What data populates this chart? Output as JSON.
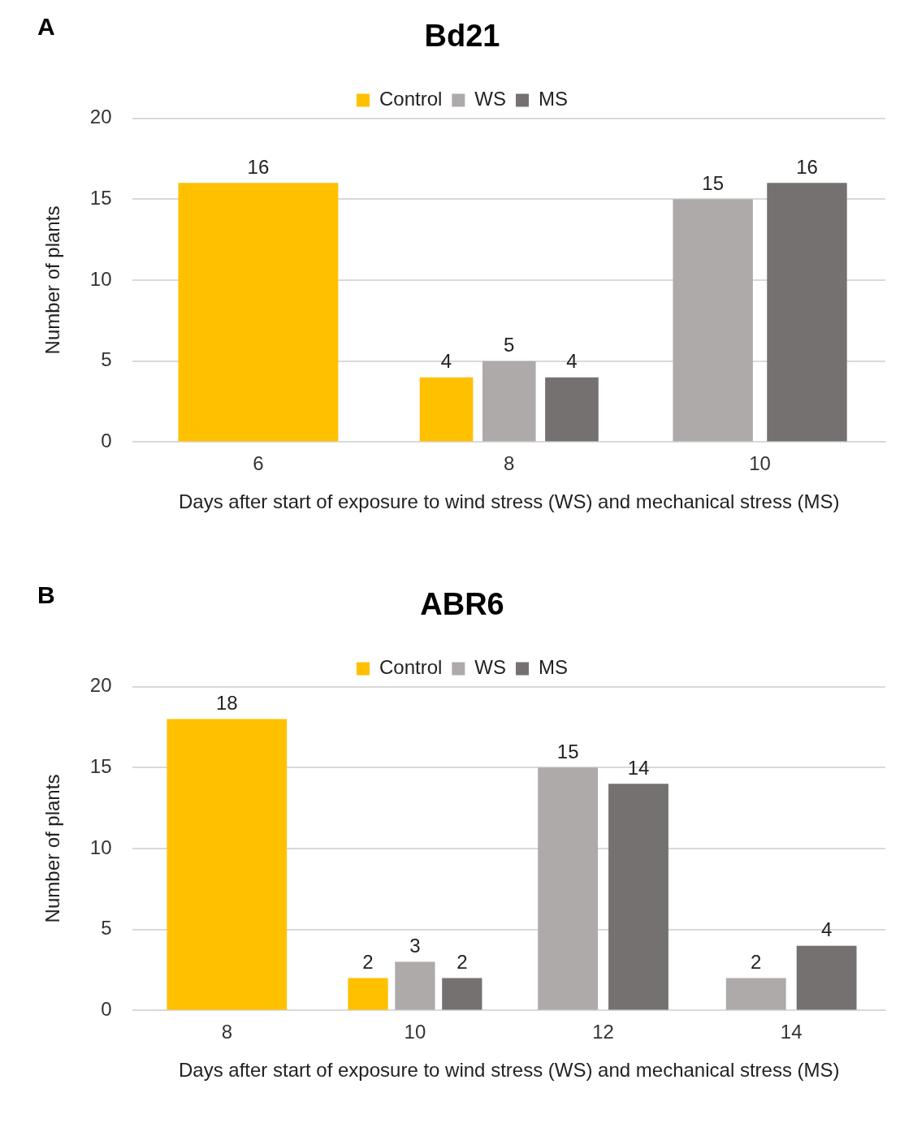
{
  "chart_data": [
    {
      "type": "bar",
      "title": "Bd21",
      "annotations": [
        "A"
      ],
      "xlabel": "Days after start of exposure to wind stress (WS) and mechanical stress (MS)",
      "ylabel": "Number of plants",
      "categories": [
        "6",
        "8",
        "10"
      ],
      "series": [
        {
          "name": "Control",
          "color": "#ffc000",
          "values": [
            16,
            4,
            null
          ]
        },
        {
          "name": "WS",
          "color": "#aeaaaa",
          "values": [
            null,
            5,
            15
          ]
        },
        {
          "name": "MS",
          "color": "#767171",
          "values": [
            null,
            4,
            16
          ]
        }
      ],
      "ylim": [
        0,
        20
      ],
      "yticks": [
        0,
        5,
        10,
        15,
        20
      ],
      "grid": "y",
      "legend": "top",
      "data_labels": true
    },
    {
      "type": "bar",
      "title": "ABR6",
      "annotations": [
        "B"
      ],
      "xlabel": "Days after start of exposure to wind stress (WS) and mechanical stress (MS)",
      "ylabel": "Number of plants",
      "categories": [
        "8",
        "10",
        "12",
        "14"
      ],
      "series": [
        {
          "name": "Control",
          "color": "#ffc000",
          "values": [
            18,
            2,
            null,
            null
          ]
        },
        {
          "name": "WS",
          "color": "#aeaaaa",
          "values": [
            null,
            3,
            15,
            2
          ]
        },
        {
          "name": "MS",
          "color": "#767171",
          "values": [
            null,
            2,
            14,
            4
          ]
        }
      ],
      "ylim": [
        0,
        20
      ],
      "yticks": [
        0,
        5,
        10,
        15,
        20
      ],
      "grid": "y",
      "legend": "top",
      "data_labels": true
    }
  ]
}
